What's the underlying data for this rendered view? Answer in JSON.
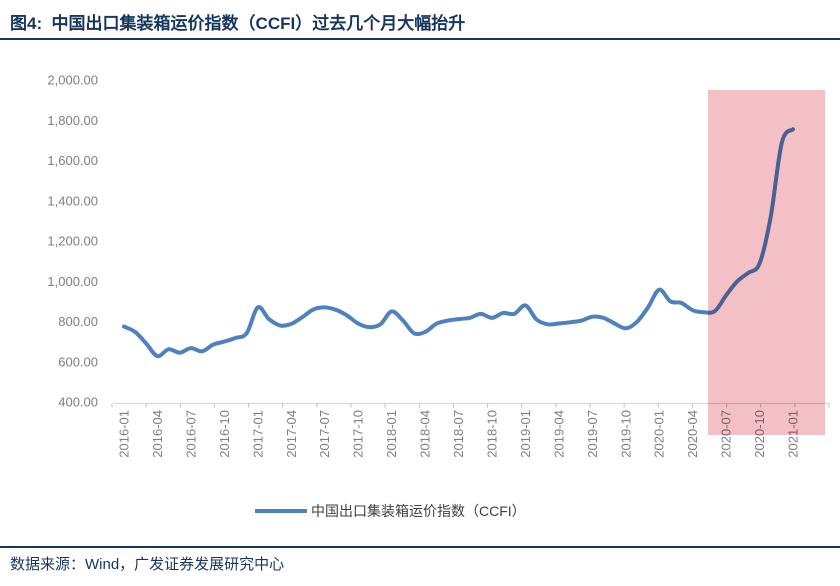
{
  "header": {
    "title": "图4:  中国出口集装箱运价指数（CCFI）过去几个月大幅抬升"
  },
  "footer": {
    "source": "数据来源：Wind，广发证券发展研究中心"
  },
  "colors": {
    "navy": "#17365d",
    "line_blue": "#4f81bd",
    "highlight_pink": "#f2c0c5",
    "tick_gray": "#808080",
    "axis_line_gray": "#d9d9d9",
    "axis_tick_gray": "#bfbfbf"
  },
  "chart_data": {
    "type": "line",
    "title": "中国出口集装箱运价指数（CCFI）过去几个月大幅抬升",
    "legend": "中国出口集装箱运价指数（CCFI）",
    "legend_position": "bottom-center",
    "grid": false,
    "ylim": [
      400,
      2000
    ],
    "y_ticks": [
      "2,000.00",
      "1,800.00",
      "1,600.00",
      "1,400.00",
      "1,200.00",
      "1,000.00",
      "800.00",
      "600.00",
      "400.00"
    ],
    "x_ticks": [
      "2016-01",
      "2016-04",
      "2016-07",
      "2016-10",
      "2017-01",
      "2017-04",
      "2017-07",
      "2017-10",
      "2018-01",
      "2018-04",
      "2018-07",
      "2018-10",
      "2019-01",
      "2019-04",
      "2019-07",
      "2019-10",
      "2020-01",
      "2020-04",
      "2020-07",
      "2020-10",
      "2021-01"
    ],
    "x": [
      "2016-01",
      "2016-02",
      "2016-03",
      "2016-04",
      "2016-05",
      "2016-06",
      "2016-07",
      "2016-08",
      "2016-09",
      "2016-10",
      "2016-11",
      "2016-12",
      "2017-01",
      "2017-02",
      "2017-03",
      "2017-04",
      "2017-05",
      "2017-06",
      "2017-07",
      "2017-08",
      "2017-09",
      "2017-10",
      "2017-11",
      "2017-12",
      "2018-01",
      "2018-02",
      "2018-03",
      "2018-04",
      "2018-05",
      "2018-06",
      "2018-07",
      "2018-08",
      "2018-09",
      "2018-10",
      "2018-11",
      "2018-12",
      "2019-01",
      "2019-02",
      "2019-03",
      "2019-04",
      "2019-05",
      "2019-06",
      "2019-07",
      "2019-08",
      "2019-09",
      "2019-10",
      "2019-11",
      "2019-12",
      "2020-01",
      "2020-02",
      "2020-03",
      "2020-04",
      "2020-05",
      "2020-06",
      "2020-07",
      "2020-08",
      "2020-09",
      "2020-10",
      "2020-11",
      "2020-12",
      "2021-01"
    ],
    "series": [
      {
        "name": "中国出口集装箱运价指数（CCFI）",
        "values": [
          775,
          748,
          690,
          628,
          662,
          645,
          668,
          652,
          685,
          700,
          718,
          742,
          870,
          812,
          780,
          788,
          822,
          860,
          870,
          858,
          830,
          790,
          772,
          786,
          850,
          806,
          742,
          748,
          788,
          804,
          812,
          818,
          838,
          818,
          842,
          838,
          880,
          810,
          786,
          790,
          796,
          804,
          824,
          818,
          790,
          766,
          798,
          870,
          958,
          900,
          892,
          856,
          846,
          852,
          930,
          1000,
          1042,
          1088,
          1320,
          1690,
          1755
        ]
      }
    ],
    "highlight": {
      "from": "2020-06",
      "to": "2021-01",
      "color": "#f2c0c5"
    }
  }
}
